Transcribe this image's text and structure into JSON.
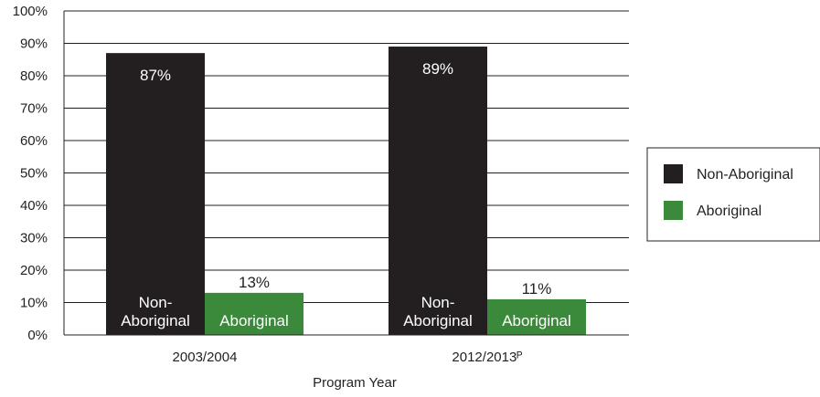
{
  "chart_data": {
    "type": "bar",
    "xlabel": "Program Year",
    "ylabel": "",
    "ylim": [
      0,
      100
    ],
    "y_ticks": [
      "0%",
      "10%",
      "20%",
      "30%",
      "40%",
      "50%",
      "60%",
      "70%",
      "80%",
      "90%",
      "100%"
    ],
    "y_tick_values": [
      0,
      10,
      20,
      30,
      40,
      50,
      60,
      70,
      80,
      90,
      100
    ],
    "grid": true,
    "legend_position": "right",
    "categories": [
      "2003/2004",
      "2012/2013ᴾ"
    ],
    "series": [
      {
        "name": "Non-Aboriginal",
        "color": "#231f20",
        "values": [
          87,
          89
        ],
        "value_labels": [
          "87%",
          "89%"
        ],
        "bar_label_lines": [
          "Non-",
          "Aboriginal"
        ]
      },
      {
        "name": "Aboriginal",
        "color": "#3b8a3b",
        "values": [
          13,
          11
        ],
        "value_labels": [
          "13%",
          "11%"
        ],
        "bar_label_lines": [
          "Aboriginal"
        ]
      }
    ]
  }
}
